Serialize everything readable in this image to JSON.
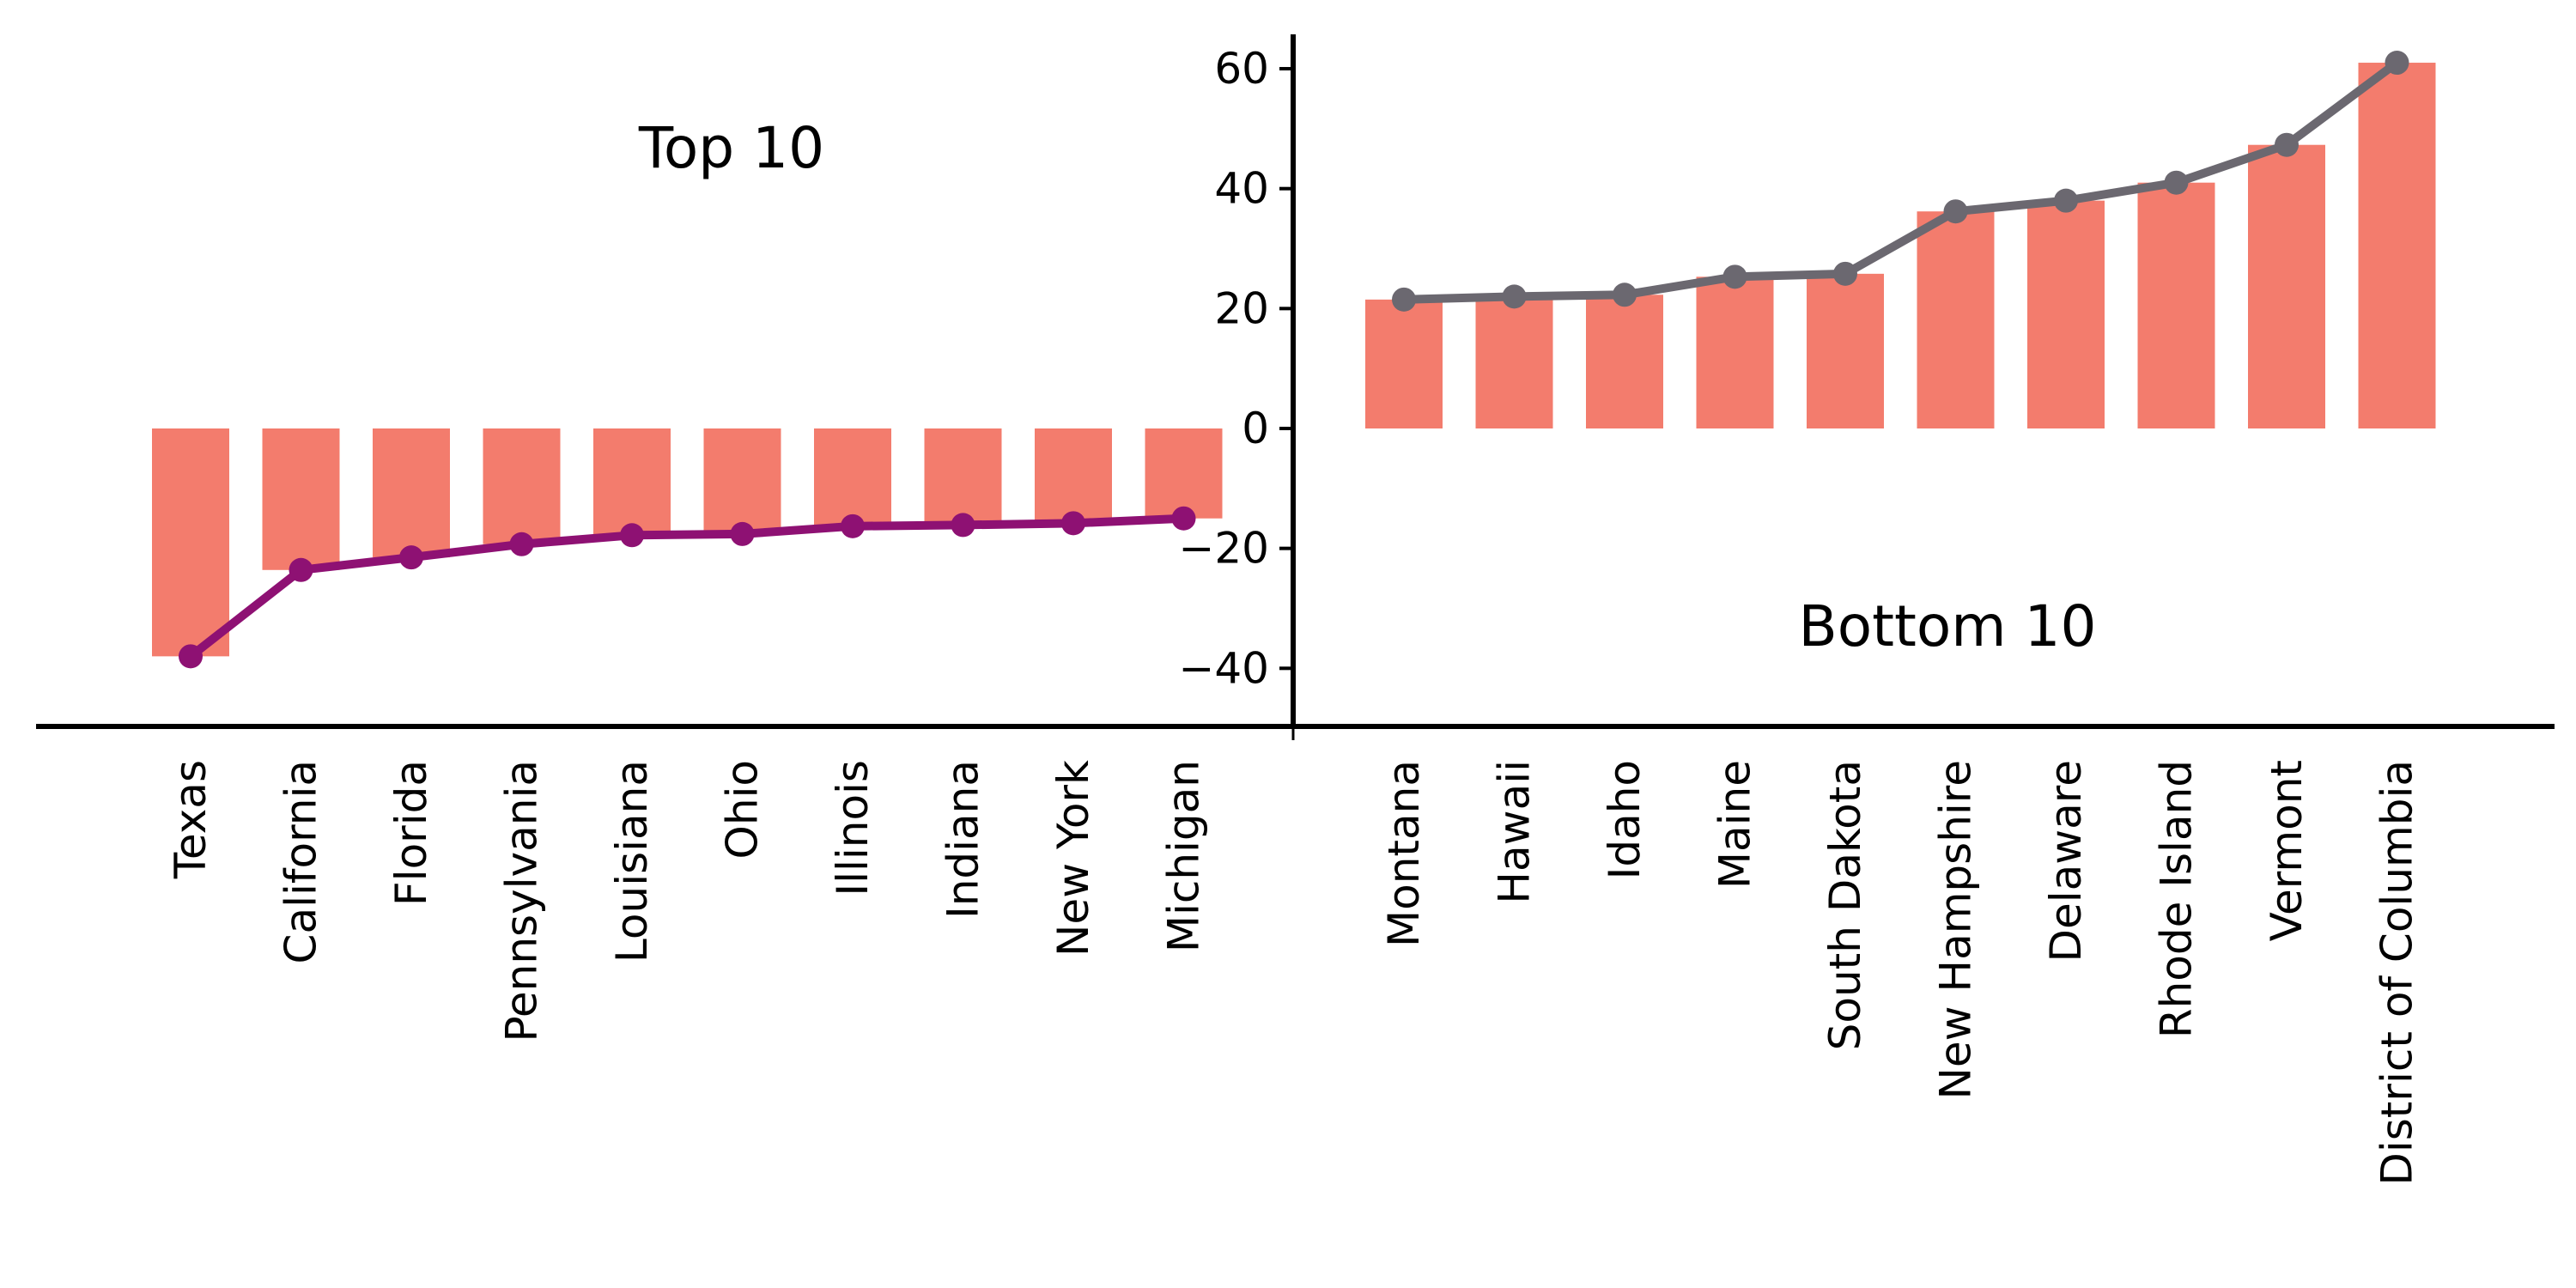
{
  "chart_data": {
    "type": "bar",
    "title": "",
    "xlabel": "",
    "ylabel": "",
    "ylim": [
      -50,
      66
    ],
    "yticks": [
      -40,
      -20,
      0,
      20,
      40,
      60
    ],
    "grid": false,
    "legend": "none",
    "colors": {
      "bar": "#F37C6D",
      "top_line": "#8E1173",
      "bottom_line": "#6B6870",
      "axis": "#000000"
    },
    "panels": [
      {
        "label": "Top 10",
        "categories": [
          "Texas",
          "California",
          "Florida",
          "Pennsylvania",
          "Louisiana",
          "Ohio",
          "Illinois",
          "Indiana",
          "New York",
          "Michigan"
        ],
        "values": [
          -38.0,
          -23.6,
          -21.5,
          -19.3,
          -17.8,
          -17.6,
          -16.3,
          -16.1,
          -15.8,
          -15.0
        ],
        "line_values": [
          -38.0,
          -23.6,
          -21.5,
          -19.3,
          -17.8,
          -17.6,
          -16.3,
          -16.1,
          -15.8,
          -15.0
        ]
      },
      {
        "label": "Bottom 10",
        "categories": [
          "Montana",
          "Hawaii",
          "Idaho",
          "Maine",
          "South Dakota",
          "New Hampshire",
          "Delaware",
          "Rhode Island",
          "Vermont",
          "District of Columbia"
        ],
        "values": [
          21.5,
          22.0,
          22.3,
          25.3,
          25.8,
          36.2,
          38.0,
          41.0,
          47.3,
          61.0
        ],
        "line_values": [
          21.5,
          22.0,
          22.3,
          25.3,
          25.8,
          36.2,
          38.0,
          41.0,
          47.3,
          61.0
        ]
      }
    ]
  }
}
